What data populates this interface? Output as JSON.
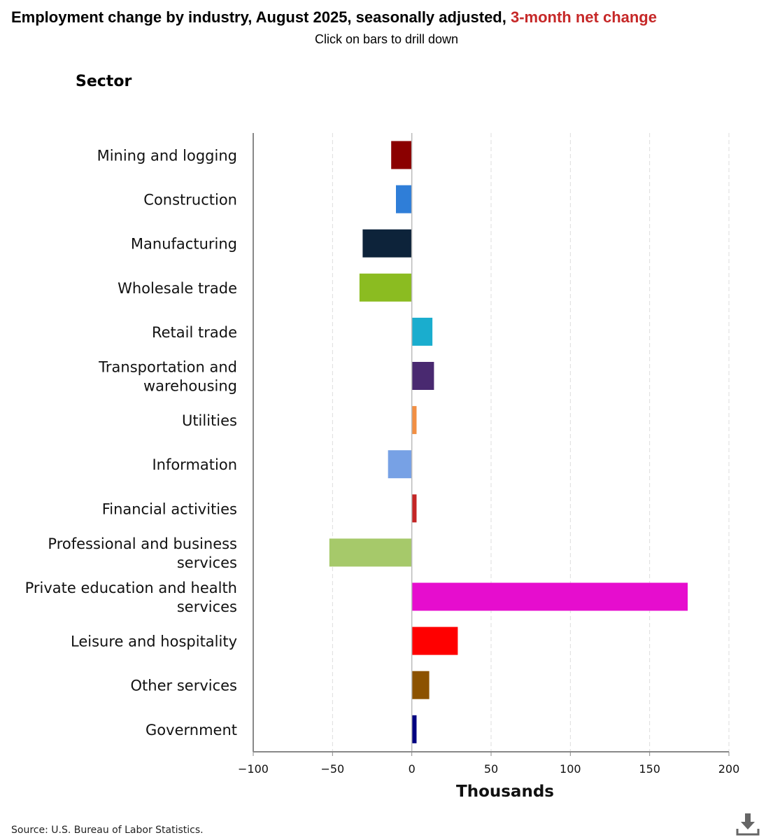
{
  "header": {
    "title_main": "Employment change by industry, August 2025, seasonally adjusted, ",
    "title_highlight": "3-month net change",
    "subtitle": "Click on bars to drill down",
    "sector_heading": "Sector"
  },
  "footer": {
    "source": "Source: U.S. Bureau of Labor Statistics.",
    "download_icon": "download-icon"
  },
  "chart_data": {
    "type": "bar",
    "orientation": "horizontal",
    "title": "Employment change by industry, August 2025, seasonally adjusted, 3-month net change",
    "xlabel": "Thousands",
    "ylabel": "Sector",
    "xlim": [
      -100,
      200
    ],
    "xticks": [
      -100,
      -50,
      0,
      50,
      100,
      150,
      200
    ],
    "xtick_labels": [
      "−100",
      "−50",
      "0",
      "50",
      "100",
      "150",
      "200"
    ],
    "grid": true,
    "categories": [
      "Mining and logging",
      "Construction",
      "Manufacturing",
      "Wholesale trade",
      "Retail trade",
      "Transportation and warehousing",
      "Utilities",
      "Information",
      "Financial activities",
      "Professional and business services",
      "Private education and health services",
      "Leisure and hospitality",
      "Other services",
      "Government"
    ],
    "label_lines": [
      [
        "Mining and logging"
      ],
      [
        "Construction"
      ],
      [
        "Manufacturing"
      ],
      [
        "Wholesale trade"
      ],
      [
        "Retail trade"
      ],
      [
        "Transportation and",
        "warehousing"
      ],
      [
        "Utilities"
      ],
      [
        "Information"
      ],
      [
        "Financial activities"
      ],
      [
        "Professional and business",
        "services"
      ],
      [
        "Private education and health",
        "services"
      ],
      [
        "Leisure and hospitality"
      ],
      [
        "Other services"
      ],
      [
        "Government"
      ]
    ],
    "values": [
      -13,
      -10,
      -31,
      -33,
      13,
      14,
      3,
      -15,
      3,
      -52,
      174,
      29,
      11,
      3
    ],
    "colors": [
      "#8b0000",
      "#2f7ed8",
      "#0d233a",
      "#8bbc21",
      "#1aadce",
      "#492970",
      "#f28f43",
      "#77a1e5",
      "#c42525",
      "#a6c96a",
      "#e60dce",
      "#ff0000",
      "#8c5200",
      "#000080"
    ],
    "gridline_color": "#dddddd",
    "axis_color": "#888888"
  }
}
